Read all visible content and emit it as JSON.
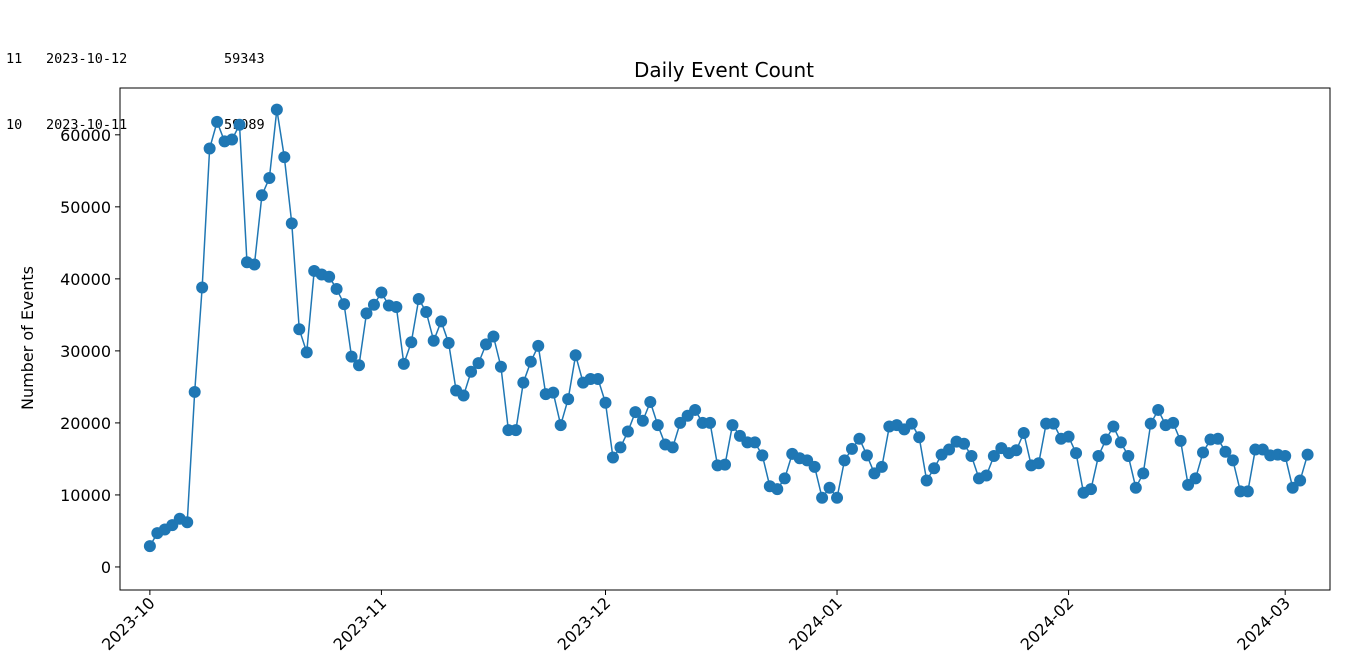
{
  "console_rows": [
    {
      "index": "11",
      "date": "2023-10-12",
      "value": "59343"
    },
    {
      "index": "10",
      "date": "2023-10-11",
      "value": "59089"
    }
  ],
  "chart_data": {
    "type": "line",
    "title": "Daily Event Count",
    "xlabel": "",
    "ylabel": "Number of Events",
    "x_start": "2023-10-01",
    "x_end": "2024-03-03",
    "xlim": [
      "2023-09-27",
      "2024-03-07"
    ],
    "ylim": [
      -3200,
      66500
    ],
    "grid": false,
    "line_color": "#1f77b4",
    "marker": "circle",
    "x_ticks": [
      "2023-10",
      "2023-11",
      "2023-12",
      "2024-01",
      "2024-02",
      "2024-03"
    ],
    "y_ticks": [
      0,
      10000,
      20000,
      30000,
      40000,
      50000,
      60000
    ],
    "values": [
      2900,
      4700,
      5200,
      5800,
      6700,
      6200,
      24300,
      38800,
      58100,
      61800,
      59089,
      59343,
      61400,
      42300,
      42000,
      51600,
      54000,
      63500,
      56900,
      47700,
      33000,
      29800,
      41100,
      40600,
      40300,
      38600,
      36500,
      29200,
      28000,
      35200,
      36400,
      38100,
      36300,
      36100,
      28200,
      31200,
      37200,
      35400,
      31400,
      34100,
      31100,
      24500,
      23800,
      27100,
      28300,
      30900,
      32000,
      27800,
      19000,
      19000,
      25600,
      28500,
      30700,
      24000,
      24200,
      19700,
      23300,
      29400,
      25600,
      26100,
      26100,
      22800,
      15200,
      16600,
      18800,
      21500,
      20300,
      22900,
      19700,
      17000,
      16600,
      20000,
      21000,
      21800,
      20000,
      20000,
      14100,
      14200,
      19700,
      18200,
      17300,
      17300,
      15500,
      11200,
      10800,
      12300,
      15700,
      15100,
      14800,
      13900,
      9600,
      11000,
      9600,
      14800,
      16400,
      17800,
      15500,
      13000,
      13900,
      19500,
      19700,
      19100,
      19900,
      18000,
      12000,
      13700,
      15600,
      16300,
      17400,
      17100,
      15400,
      12300,
      12700,
      15400,
      16500,
      15800,
      16200,
      18600,
      14100,
      14400,
      19900,
      19900,
      17800,
      18100,
      15800,
      10300,
      10800,
      15400,
      17700,
      19500,
      17300,
      15400,
      11000,
      13000,
      19900,
      21800,
      19700,
      20000,
      17500,
      11400,
      12300,
      15900,
      17700,
      17800,
      16000,
      14800,
      10500,
      10500,
      16300,
      16300,
      15500,
      15600,
      15400,
      11000,
      12000,
      15600
    ]
  }
}
